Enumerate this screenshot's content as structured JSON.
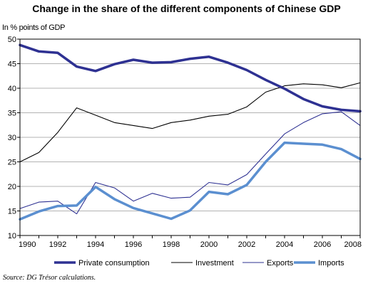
{
  "chart_data": {
    "type": "line",
    "title": "Change in the share of the different components of Chinese GDP",
    "ylabel": "In % points of GDP",
    "xlabel": "",
    "x": [
      1990,
      1991,
      1992,
      1993,
      1994,
      1995,
      1996,
      1997,
      1998,
      1999,
      2000,
      2001,
      2002,
      2003,
      2004,
      2005,
      2006,
      2007,
      2008
    ],
    "xticks": [
      1990,
      1992,
      1994,
      1996,
      1998,
      2000,
      2002,
      2004,
      2006,
      2008
    ],
    "yticks": [
      10,
      15,
      20,
      25,
      30,
      35,
      40,
      45,
      50
    ],
    "ylim": [
      10,
      50
    ],
    "xlim": [
      1990,
      2008
    ],
    "grid": "horizontal",
    "legend": "bottom",
    "series": [
      {
        "name": "Private consumption",
        "color": "#2e3192",
        "style": "thick",
        "values": [
          48.8,
          47.5,
          47.2,
          44.4,
          43.5,
          44.9,
          45.8,
          45.2,
          45.3,
          46.0,
          46.4,
          45.2,
          43.7,
          41.7,
          39.9,
          37.8,
          36.3,
          35.6,
          35.3
        ]
      },
      {
        "name": "Investment",
        "color": "#000000",
        "style": "thin",
        "values": [
          25.0,
          26.9,
          31.0,
          36.0,
          34.5,
          33.0,
          32.4,
          31.8,
          33.0,
          33.5,
          34.3,
          34.7,
          36.2,
          39.2,
          40.5,
          40.9,
          40.7,
          40.1,
          41.1
        ]
      },
      {
        "name": "Exports",
        "color": "#2e3192",
        "style": "thin",
        "values": [
          15.5,
          16.8,
          17.0,
          14.4,
          20.8,
          19.7,
          17.0,
          18.6,
          17.6,
          17.8,
          20.8,
          20.3,
          22.4,
          26.6,
          30.7,
          33.0,
          34.8,
          35.2,
          32.4
        ]
      },
      {
        "name": "Imports",
        "color": "#5b8fd0",
        "style": "thick",
        "values": [
          13.3,
          14.9,
          16.0,
          16.1,
          19.9,
          17.4,
          15.6,
          14.5,
          13.4,
          15.1,
          18.9,
          18.4,
          20.3,
          25.0,
          28.9,
          28.7,
          28.5,
          27.6,
          25.6
        ]
      }
    ]
  },
  "source": "Source: DG Trésor calculations."
}
